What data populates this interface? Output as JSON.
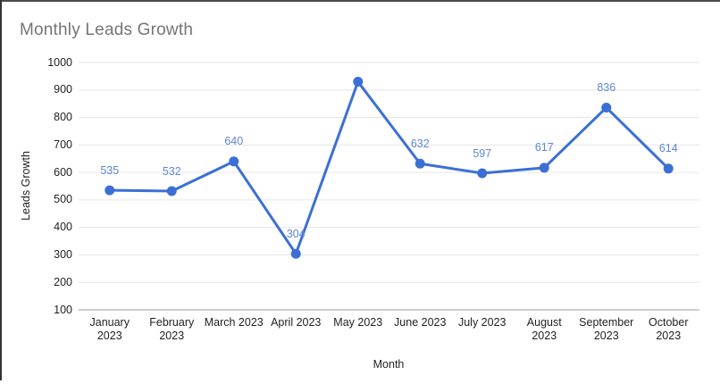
{
  "window": {
    "background": "#ffffff",
    "border_top_color": "#4a4a4a",
    "border_left_color": "#333333"
  },
  "chart_data": {
    "type": "line",
    "title": "Monthly Leads Growth",
    "xlabel": "Month",
    "ylabel": "Leads Growth",
    "categories": [
      "January 2023",
      "February 2023",
      "March 2023",
      "April 2023",
      "May 2023",
      "June 2023",
      "July 2023",
      "August 2023",
      "September 2023",
      "October 2023"
    ],
    "category_lines": [
      [
        "January",
        "2023"
      ],
      [
        "February",
        "2023"
      ],
      [
        "March 2023"
      ],
      [
        "April 2023"
      ],
      [
        "May 2023"
      ],
      [
        "June 2023"
      ],
      [
        "July 2023"
      ],
      [
        "August",
        "2023"
      ],
      [
        "September",
        "2023"
      ],
      [
        "October",
        "2023"
      ]
    ],
    "series": [
      {
        "name": "Leads Growth",
        "values": [
          535,
          532,
          640,
          304,
          930,
          632,
          597,
          617,
          836,
          614
        ],
        "point_labels": [
          "535",
          "532",
          "640",
          "304",
          null,
          "632",
          "597",
          "617",
          "836",
          "614"
        ]
      }
    ],
    "ylim": [
      100,
      1000
    ],
    "y_ticks": [
      100,
      200,
      300,
      400,
      500,
      600,
      700,
      800,
      900,
      1000
    ],
    "grid": true,
    "legend": "none",
    "colors": {
      "line": "#3c6fd6",
      "point": "#3c6fd6",
      "point_label": "#5c87d6",
      "gridline": "#e6e6e6",
      "axis_line": "#bdbdbd",
      "tick_label": "#1f1f1f",
      "axis_title": "#1f1f1f",
      "title": "#757575"
    }
  }
}
